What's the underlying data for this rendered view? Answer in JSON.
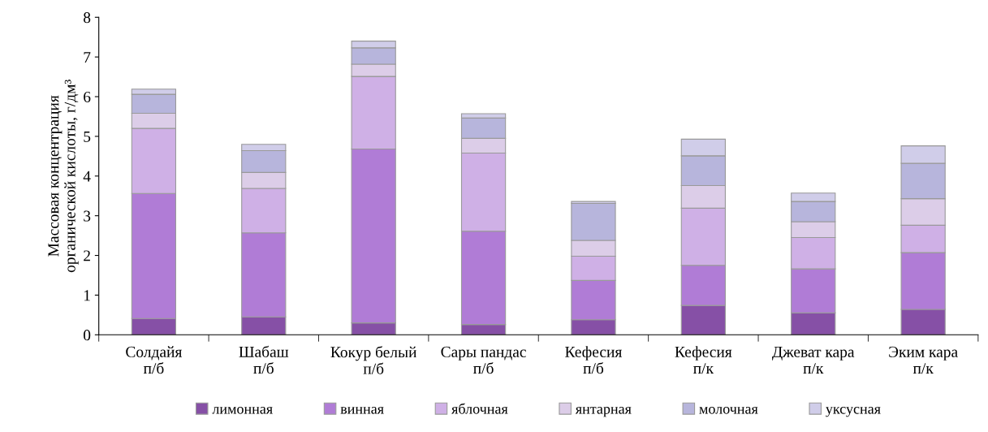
{
  "chart_data": {
    "type": "bar",
    "stacked": true,
    "ylabel": "Массовая концентрация\nорганической кислоты, г/дм³",
    "categories": [
      "Солдайя\nп/б",
      "Шабаш\nп/б",
      "Кокур белый\nп/б",
      "Сары пандас\nп/б",
      "Кефесия\nп/б",
      "Кефесия\nп/к",
      "Джеват кара\nп/к",
      "Эким кара\nп/к"
    ],
    "series": [
      {
        "name": "лимонная",
        "color": "#8650a6",
        "values": [
          0.41,
          0.45,
          0.3,
          0.26,
          0.38,
          0.74,
          0.55,
          0.64
        ]
      },
      {
        "name": "винная",
        "color": "#b07cd6",
        "values": [
          3.15,
          2.12,
          4.38,
          2.35,
          0.99,
          1.01,
          1.11,
          1.43
        ]
      },
      {
        "name": "яблочная",
        "color": "#cfb0e6",
        "values": [
          1.64,
          1.12,
          1.83,
          1.97,
          0.61,
          1.44,
          0.79,
          0.69
        ]
      },
      {
        "name": "янтарная",
        "color": "#dccde8",
        "values": [
          0.38,
          0.4,
          0.31,
          0.37,
          0.4,
          0.57,
          0.4,
          0.67
        ]
      },
      {
        "name": "молочная",
        "color": "#b7b5dc",
        "values": [
          0.48,
          0.55,
          0.41,
          0.51,
          0.93,
          0.75,
          0.51,
          0.89
        ]
      },
      {
        "name": "уксусная",
        "color": "#d0cde9",
        "values": [
          0.13,
          0.16,
          0.17,
          0.11,
          0.05,
          0.42,
          0.21,
          0.44
        ]
      }
    ],
    "ylim": [
      0,
      8
    ],
    "yticks": [
      0,
      1,
      2,
      3,
      4,
      5,
      6,
      7,
      8
    ],
    "grid": false,
    "legend": "bottom"
  }
}
